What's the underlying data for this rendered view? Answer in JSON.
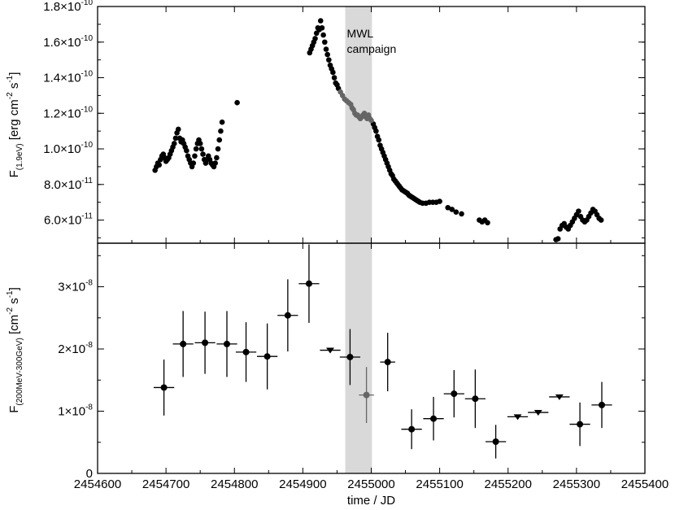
{
  "chart_data": [
    {
      "type": "scatter",
      "panel": "top",
      "ylabel": "F(1.9eV) [erg cm-2 s-1]",
      "ylabel_parts": {
        "main": "F",
        "sub": "(1.9eV)",
        "unit_pre": "[erg cm",
        "exp1": "-2",
        "mid": " s",
        "exp2": "-1",
        "unit_post": "]"
      },
      "ylim": [
        4.7e-11,
        1.8e-10
      ],
      "yticks": [
        {
          "value": 6e-11,
          "mant": "6.0×10",
          "exp": "-11"
        },
        {
          "value": 8e-11,
          "mant": "8.0×10",
          "exp": "-11"
        },
        {
          "value": 1e-10,
          "mant": "1.0×10",
          "exp": "-10"
        },
        {
          "value": 1.2e-10,
          "mant": "1.2×10",
          "exp": "-10"
        },
        {
          "value": 1.4e-10,
          "mant": "1.4×10",
          "exp": "-10"
        },
        {
          "value": 1.6e-10,
          "mant": "1.6×10",
          "exp": "-10"
        },
        {
          "value": 1.8e-10,
          "mant": "1.8×10",
          "exp": "-10"
        }
      ],
      "shade_label": [
        "MWL",
        "campaign"
      ],
      "series": [
        {
          "values": [
            [
              2454684,
              8.8e-11
            ],
            [
              2454686,
              9e-11
            ],
            [
              2454688,
              9.2e-11
            ],
            [
              2454690,
              9.1e-11
            ],
            [
              2454692,
              9.4e-11
            ],
            [
              2454694,
              9.6e-11
            ],
            [
              2454696,
              9.7e-11
            ],
            [
              2454698,
              9.5e-11
            ],
            [
              2454700,
              9.3e-11
            ],
            [
              2454702,
              9.4e-11
            ],
            [
              2454704,
              9.5e-11
            ],
            [
              2454706,
              9.7e-11
            ],
            [
              2454708,
              9.9e-11
            ],
            [
              2454710,
              1.01e-10
            ],
            [
              2454712,
              1.03e-10
            ],
            [
              2454714,
              1.06e-10
            ],
            [
              2454716,
              1.09e-10
            ],
            [
              2454718,
              1.11e-10
            ],
            [
              2454720,
              1.06e-10
            ],
            [
              2454722,
              1.04e-10
            ],
            [
              2454724,
              1.05e-10
            ],
            [
              2454726,
              1.03e-10
            ],
            [
              2454728,
              1.01e-10
            ],
            [
              2454730,
              9.9e-11
            ],
            [
              2454732,
              9.6e-11
            ],
            [
              2454734,
              9.4e-11
            ],
            [
              2454736,
              9.2e-11
            ],
            [
              2454738,
              9e-11
            ],
            [
              2454740,
              9.2e-11
            ],
            [
              2454742,
              9.6e-11
            ],
            [
              2454744,
              1e-10
            ],
            [
              2454746,
              1.03e-10
            ],
            [
              2454748,
              1.05e-10
            ],
            [
              2454750,
              1.03e-10
            ],
            [
              2454752,
              1e-10
            ],
            [
              2454754,
              9.7e-11
            ],
            [
              2454756,
              9.4e-11
            ],
            [
              2454758,
              9.2e-11
            ],
            [
              2454760,
              9.4e-11
            ],
            [
              2454762,
              9.6e-11
            ],
            [
              2454764,
              9.4e-11
            ],
            [
              2454766,
              9.2e-11
            ],
            [
              2454768,
              9.1e-11
            ],
            [
              2454770,
              9e-11
            ],
            [
              2454772,
              9.2e-11
            ],
            [
              2454774,
              9.5e-11
            ],
            [
              2454776,
              1e-10
            ],
            [
              2454778,
              1.05e-10
            ],
            [
              2454780,
              1.1e-10
            ],
            [
              2454782,
              1.15e-10
            ],
            [
              2454804,
              1.26e-10
            ],
            [
              2454910,
              1.54e-10
            ],
            [
              2454912,
              1.56e-10
            ],
            [
              2454914,
              1.58e-10
            ],
            [
              2454916,
              1.6e-10
            ],
            [
              2454918,
              1.62e-10
            ],
            [
              2454920,
              1.65e-10
            ],
            [
              2454922,
              1.68e-10
            ],
            [
              2454924,
              1.67e-10
            ],
            [
              2454926,
              1.72e-10
            ],
            [
              2454928,
              1.68e-10
            ],
            [
              2454930,
              1.64e-10
            ],
            [
              2454932,
              1.6e-10
            ],
            [
              2454934,
              1.56e-10
            ],
            [
              2454936,
              1.53e-10
            ],
            [
              2454938,
              1.5e-10
            ],
            [
              2454940,
              1.47e-10
            ],
            [
              2454942,
              1.45e-10
            ],
            [
              2454944,
              1.43e-10
            ],
            [
              2454946,
              1.4e-10
            ],
            [
              2454948,
              1.37e-10
            ],
            [
              2454950,
              1.36e-10
            ],
            [
              2454952,
              1.34e-10
            ],
            [
              2455003,
              1.14e-10
            ],
            [
              2455005,
              1.12e-10
            ],
            [
              2455007,
              1.1e-10
            ],
            [
              2455009,
              1.07e-10
            ],
            [
              2455011,
              1.05e-10
            ],
            [
              2455013,
              1.02e-10
            ],
            [
              2455015,
              1e-10
            ],
            [
              2455017,
              9.8e-11
            ],
            [
              2455019,
              9.6e-11
            ],
            [
              2455021,
              9.4e-11
            ],
            [
              2455023,
              9.2e-11
            ],
            [
              2455025,
              9e-11
            ],
            [
              2455027,
              8.8e-11
            ],
            [
              2455029,
              8.6e-11
            ],
            [
              2455031,
              8.5e-11
            ],
            [
              2455033,
              8.3e-11
            ],
            [
              2455035,
              8.2e-11
            ],
            [
              2455037,
              8.1e-11
            ],
            [
              2455039,
              8e-11
            ],
            [
              2455041,
              7.9e-11
            ],
            [
              2455043,
              7.8e-11
            ],
            [
              2455045,
              7.7e-11
            ],
            [
              2455047,
              7.65e-11
            ],
            [
              2455049,
              7.6e-11
            ],
            [
              2455051,
              7.55e-11
            ],
            [
              2455053,
              7.5e-11
            ],
            [
              2455055,
              7.4e-11
            ],
            [
              2455057,
              7.35e-11
            ],
            [
              2455059,
              7.3e-11
            ],
            [
              2455061,
              7.25e-11
            ],
            [
              2455063,
              7.2e-11
            ],
            [
              2455065,
              7.15e-11
            ],
            [
              2455067,
              7.1e-11
            ],
            [
              2455069,
              7.05e-11
            ],
            [
              2455071,
              7e-11
            ],
            [
              2455075,
              6.95e-11
            ],
            [
              2455080,
              6.95e-11
            ],
            [
              2455085,
              7e-11
            ],
            [
              2455090,
              7e-11
            ],
            [
              2455095,
              7e-11
            ],
            [
              2455100,
              7.05e-11
            ],
            [
              2455112,
              6.7e-11
            ],
            [
              2455118,
              6.6e-11
            ],
            [
              2455124,
              6.45e-11
            ],
            [
              2455132,
              6.35e-11
            ],
            [
              2455158,
              6e-11
            ],
            [
              2455162,
              5.9e-11
            ],
            [
              2455166,
              6e-11
            ],
            [
              2455170,
              5.85e-11
            ],
            [
              2455270,
              4.9e-11
            ],
            [
              2455273,
              4.95e-11
            ],
            [
              2455276,
              5.5e-11
            ],
            [
              2455279,
              5.7e-11
            ],
            [
              2455282,
              5.8e-11
            ],
            [
              2455285,
              5.6e-11
            ],
            [
              2455288,
              5.5e-11
            ],
            [
              2455291,
              5.7e-11
            ],
            [
              2455294,
              5.9e-11
            ],
            [
              2455297,
              6.1e-11
            ],
            [
              2455300,
              6.3e-11
            ],
            [
              2455303,
              6.5e-11
            ],
            [
              2455306,
              6.2e-11
            ],
            [
              2455309,
              6e-11
            ],
            [
              2455312,
              5.9e-11
            ],
            [
              2455315,
              6e-11
            ],
            [
              2455318,
              6.2e-11
            ],
            [
              2455321,
              6.4e-11
            ],
            [
              2455324,
              6.6e-11
            ],
            [
              2455327,
              6.5e-11
            ],
            [
              2455330,
              6.3e-11
            ],
            [
              2455333,
              6.1e-11
            ],
            [
              2455336,
              6e-11
            ]
          ]
        },
        {
          "values": [
            [
              2454955,
              1.32e-10
            ],
            [
              2454958,
              1.3e-10
            ],
            [
              2454961,
              1.28e-10
            ],
            [
              2454964,
              1.27e-10
            ],
            [
              2454967,
              1.26e-10
            ],
            [
              2454970,
              1.25e-10
            ],
            [
              2454972,
              1.23e-10
            ],
            [
              2454974,
              1.22e-10
            ],
            [
              2454976,
              1.2e-10
            ],
            [
              2454978,
              1.19e-10
            ],
            [
              2454980,
              1.19e-10
            ],
            [
              2454982,
              1.18e-10
            ],
            [
              2454984,
              1.17e-10
            ],
            [
              2454986,
              1.18e-10
            ],
            [
              2454988,
              1.19e-10
            ],
            [
              2454990,
              1.2e-10
            ],
            [
              2454992,
              1.18e-10
            ],
            [
              2454994,
              1.17e-10
            ],
            [
              2454996,
              1.19e-10
            ],
            [
              2454998,
              1.17e-10
            ],
            [
              2455000,
              1.16e-10
            ]
          ]
        }
      ]
    },
    {
      "type": "scatter",
      "panel": "bottom",
      "xlabel": "time / JD",
      "ylabel": "F(200MeV-300GeV) [cm-2 s-1]",
      "ylabel_parts": {
        "main": "F",
        "sub": "(200MeV-300GeV)",
        "unit_pre": "[cm",
        "exp1": "-2",
        "mid": " s",
        "exp2": "-1",
        "unit_post": "]"
      },
      "xlim": [
        2454600,
        2455400
      ],
      "xticks": [
        2454600,
        2454700,
        2454800,
        2454900,
        2455000,
        2455100,
        2455200,
        2455300,
        2455400
      ],
      "ylim": [
        0,
        3.7e-08
      ],
      "yticks": [
        {
          "value": 0,
          "mant": "0",
          "exp": ""
        },
        {
          "value": 1e-08,
          "mant": "1×10",
          "exp": "-8"
        },
        {
          "value": 2e-08,
          "mant": "2×10",
          "exp": "-8"
        },
        {
          "value": 3e-08,
          "mant": "3×10",
          "exp": "-8"
        }
      ],
      "series": [
        {
          "values": [
            {
              "x": 2454697,
              "xerr": 15,
              "y": 1.38e-08,
              "yerr": 4.5e-09
            },
            {
              "x": 2454725,
              "xerr": 15,
              "y": 2.08e-08,
              "yerr": 5.3e-09
            },
            {
              "x": 2454757,
              "xerr": 15,
              "y": 2.1e-08,
              "yerr": 5e-09
            },
            {
              "x": 2454789,
              "xerr": 15,
              "y": 2.08e-08,
              "yerr": 5.3e-09
            },
            {
              "x": 2454817,
              "xerr": 15,
              "y": 1.95e-08,
              "yerr": 4.8e-09
            },
            {
              "x": 2454848,
              "xerr": 15,
              "y": 1.88e-08,
              "yerr": 5.3e-09
            },
            {
              "x": 2454878,
              "xerr": 15,
              "y": 2.54e-08,
              "yerr": 5.8e-09
            },
            {
              "x": 2454909,
              "xerr": 15,
              "y": 3.05e-08,
              "yerr": 6.3e-09
            },
            {
              "x": 2454969,
              "xerr": 15,
              "y": 1.87e-08,
              "yerr": 4.5e-09
            },
            {
              "x": 2455024,
              "xerr": 11,
              "y": 1.79e-08,
              "yerr": 4.7e-09
            },
            {
              "x": 2455059,
              "xerr": 15,
              "y": 7.1e-09,
              "yerr": 3.2e-09
            },
            {
              "x": 2455091,
              "xerr": 15,
              "y": 8.8e-09,
              "yerr": 3.5e-09
            },
            {
              "x": 2455121,
              "xerr": 15,
              "y": 1.28e-08,
              "yerr": 3.8e-09
            },
            {
              "x": 2455152,
              "xerr": 15,
              "y": 1.2e-08,
              "yerr": 4.7e-09
            },
            {
              "x": 2455182,
              "xerr": 15,
              "y": 5.1e-09,
              "yerr": 2.7e-09
            },
            {
              "x": 2455305,
              "xerr": 15,
              "y": 7.9e-09,
              "yerr": 3.5e-09
            },
            {
              "x": 2455337,
              "xerr": 15,
              "y": 1.1e-08,
              "yerr": 3.7e-09
            }
          ]
        },
        {
          "values": [
            {
              "x": 2454993,
              "xerr": 11,
              "y": 1.26e-08,
              "yerr": 4.5e-09
            }
          ]
        },
        {
          "upper_limit": true,
          "values": [
            {
              "x": 2454940,
              "xerr": 15,
              "y": 1.98e-08
            },
            {
              "x": 2455214,
              "xerr": 15,
              "y": 9.1e-09
            },
            {
              "x": 2455244,
              "xerr": 15,
              "y": 9.8e-09
            },
            {
              "x": 2455275,
              "xerr": 15,
              "y": 1.23e-08
            }
          ]
        }
      ]
    }
  ],
  "shaded_band": {
    "x_start": 2454962,
    "x_end": 2455001
  },
  "colors": {
    "main": "#000000",
    "campaign": "#666666",
    "band": "#d9d9d9"
  }
}
